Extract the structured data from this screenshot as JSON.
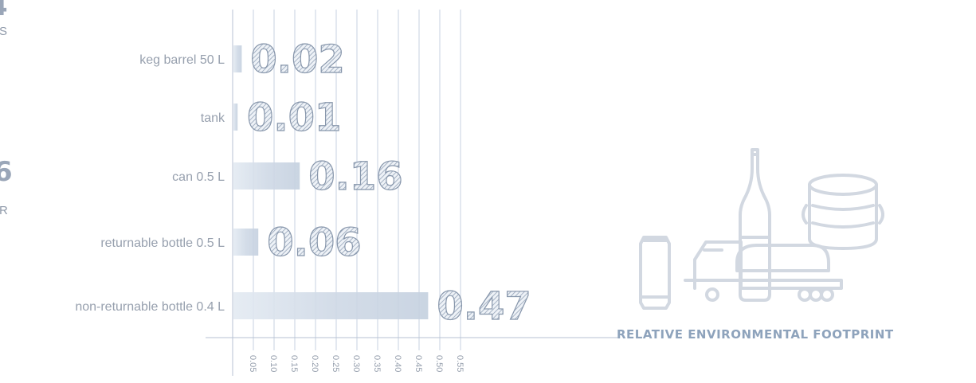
{
  "left_clipped": {
    "top_big": "4",
    "top_small": "S",
    "mid_big": "6",
    "mid_small": "R"
  },
  "caption": "RELATIVE ENVIRONMENTAL FOOTPRINT",
  "colors": {
    "bar": "#d3dde9",
    "text": "#97a0ae",
    "accent": "#8ea3bc",
    "grid": "#c7d0e0"
  },
  "icons": [
    "can-icon",
    "bottle-icon",
    "keg-icon",
    "tanker-truck-icon"
  ],
  "chart_data": {
    "type": "bar",
    "orientation": "horizontal",
    "categories": [
      "keg barrel 50 L",
      "tank",
      "can 0.5 L",
      "returnable bottle 0.5 L",
      "non-returnable bottle 0.4 L"
    ],
    "values": [
      0.02,
      0.01,
      0.16,
      0.06,
      0.47
    ],
    "value_labels": [
      "0.02",
      "0.01",
      "0.16",
      "0.06",
      "0.47"
    ],
    "x_ticks": [
      "0.05",
      "0.10",
      "0.15",
      "0.20",
      "0.25",
      "0.30",
      "0.35",
      "0.40",
      "0.45",
      "0.50",
      "0.55"
    ],
    "xlim": [
      0,
      0.55
    ],
    "grid": true,
    "title": "",
    "xlabel": "",
    "ylabel": ""
  }
}
